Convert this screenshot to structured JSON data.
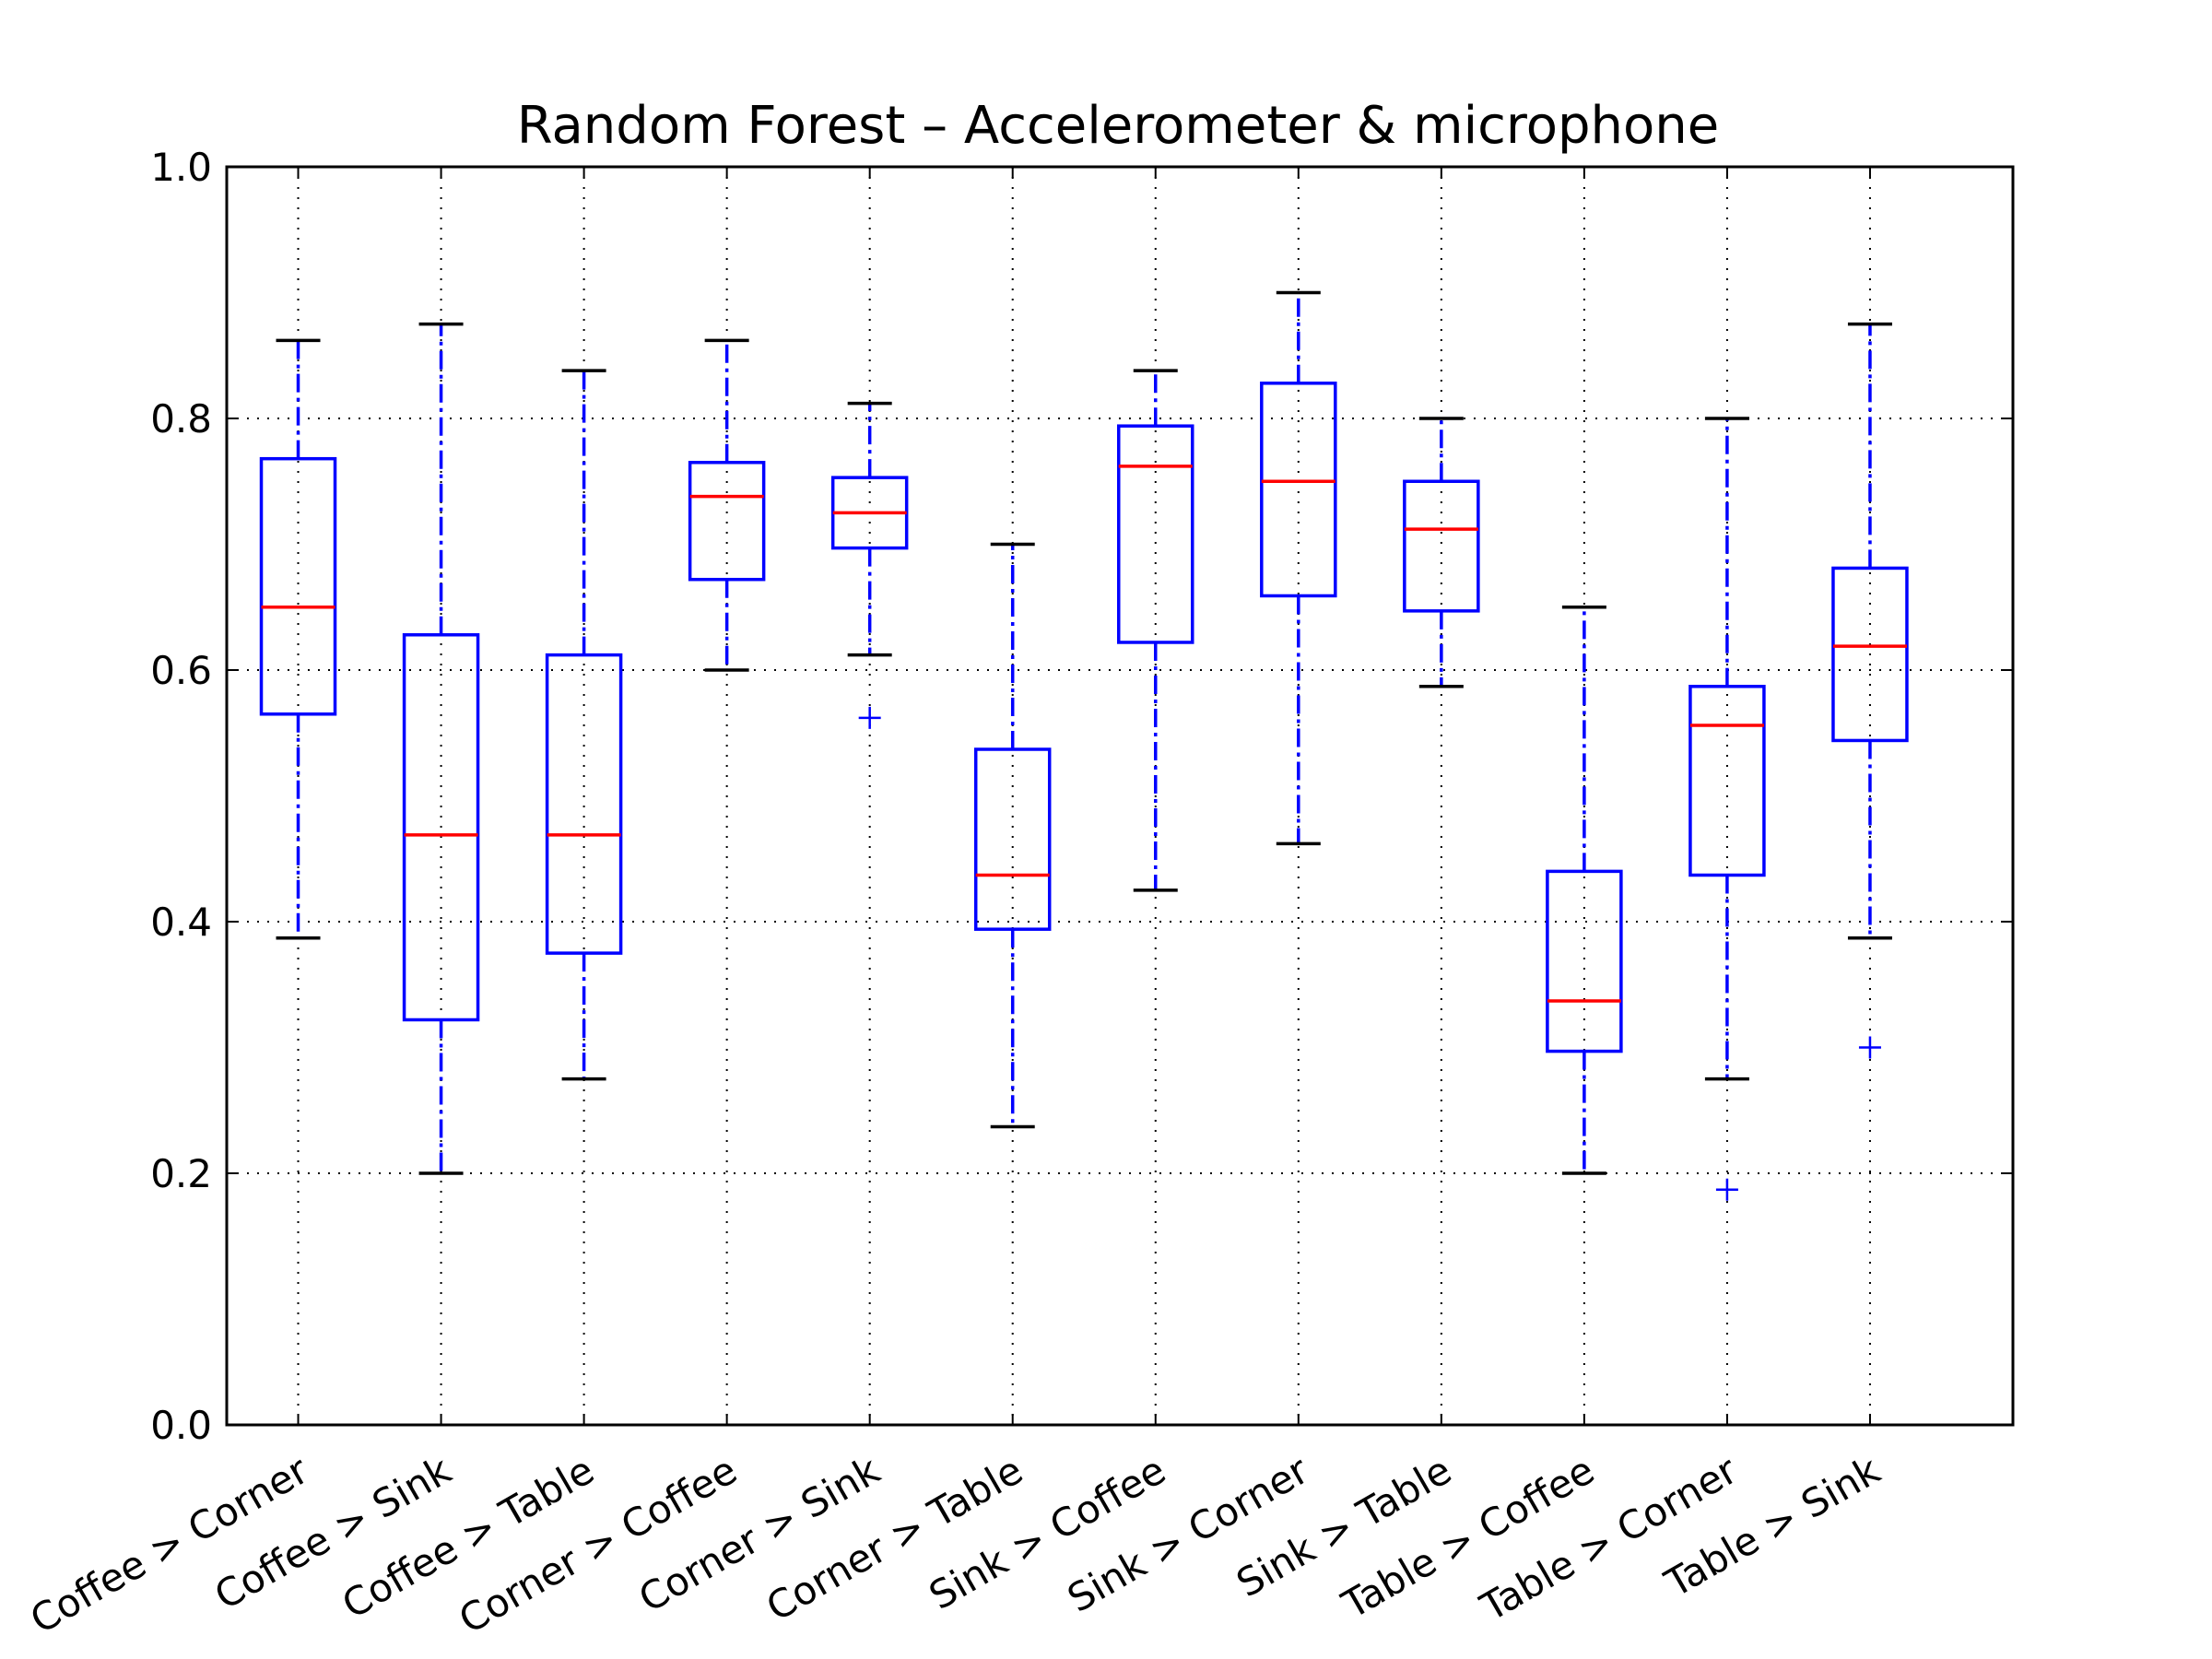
{
  "chart_data": {
    "type": "box",
    "title": "Random Forest – Accelerometer & microphone",
    "xlabel": "",
    "ylabel": "",
    "ylim": [
      0.0,
      1.0
    ],
    "yticks": [
      "0.0",
      "0.2",
      "0.4",
      "0.6",
      "0.8",
      "1.0"
    ],
    "grid": true,
    "categories": [
      "Coffee > Corner",
      "Coffee > Sink",
      "Coffee > Table",
      "Corner > Coffee",
      "Corner > Sink",
      "Corner > Table",
      "Sink > Coffee",
      "Sink > Corner",
      "Sink > Table",
      "Table > Coffee",
      "Table > Corner",
      "Table > Sink"
    ],
    "boxes": [
      {
        "whisker_low": 0.387,
        "q1": 0.565,
        "median": 0.65,
        "q3": 0.768,
        "whisker_high": 0.862,
        "outliers": []
      },
      {
        "whisker_low": 0.2,
        "q1": 0.322,
        "median": 0.469,
        "q3": 0.628,
        "whisker_high": 0.875,
        "outliers": []
      },
      {
        "whisker_low": 0.275,
        "q1": 0.375,
        "median": 0.469,
        "q3": 0.612,
        "whisker_high": 0.838,
        "outliers": []
      },
      {
        "whisker_low": 0.6,
        "q1": 0.672,
        "median": 0.738,
        "q3": 0.765,
        "whisker_high": 0.862,
        "outliers": []
      },
      {
        "whisker_low": 0.612,
        "q1": 0.697,
        "median": 0.725,
        "q3": 0.753,
        "whisker_high": 0.812,
        "outliers": [
          0.562
        ]
      },
      {
        "whisker_low": 0.237,
        "q1": 0.394,
        "median": 0.437,
        "q3": 0.537,
        "whisker_high": 0.7,
        "outliers": []
      },
      {
        "whisker_low": 0.425,
        "q1": 0.622,
        "median": 0.762,
        "q3": 0.794,
        "whisker_high": 0.838,
        "outliers": []
      },
      {
        "whisker_low": 0.462,
        "q1": 0.659,
        "median": 0.75,
        "q3": 0.828,
        "whisker_high": 0.9,
        "outliers": []
      },
      {
        "whisker_low": 0.587,
        "q1": 0.647,
        "median": 0.712,
        "q3": 0.75,
        "whisker_high": 0.8,
        "outliers": []
      },
      {
        "whisker_low": 0.2,
        "q1": 0.297,
        "median": 0.337,
        "q3": 0.44,
        "whisker_high": 0.65,
        "outliers": []
      },
      {
        "whisker_low": 0.275,
        "q1": 0.437,
        "median": 0.556,
        "q3": 0.587,
        "whisker_high": 0.8,
        "outliers": [
          0.187
        ]
      },
      {
        "whisker_low": 0.387,
        "q1": 0.544,
        "median": 0.619,
        "q3": 0.681,
        "whisker_high": 0.875,
        "outliers": [
          0.3
        ]
      }
    ],
    "colors": {
      "box": "#0000ff",
      "median": "#ff0000",
      "cap": "#000000",
      "flier": "#0000ff",
      "grid": "#000000"
    }
  }
}
